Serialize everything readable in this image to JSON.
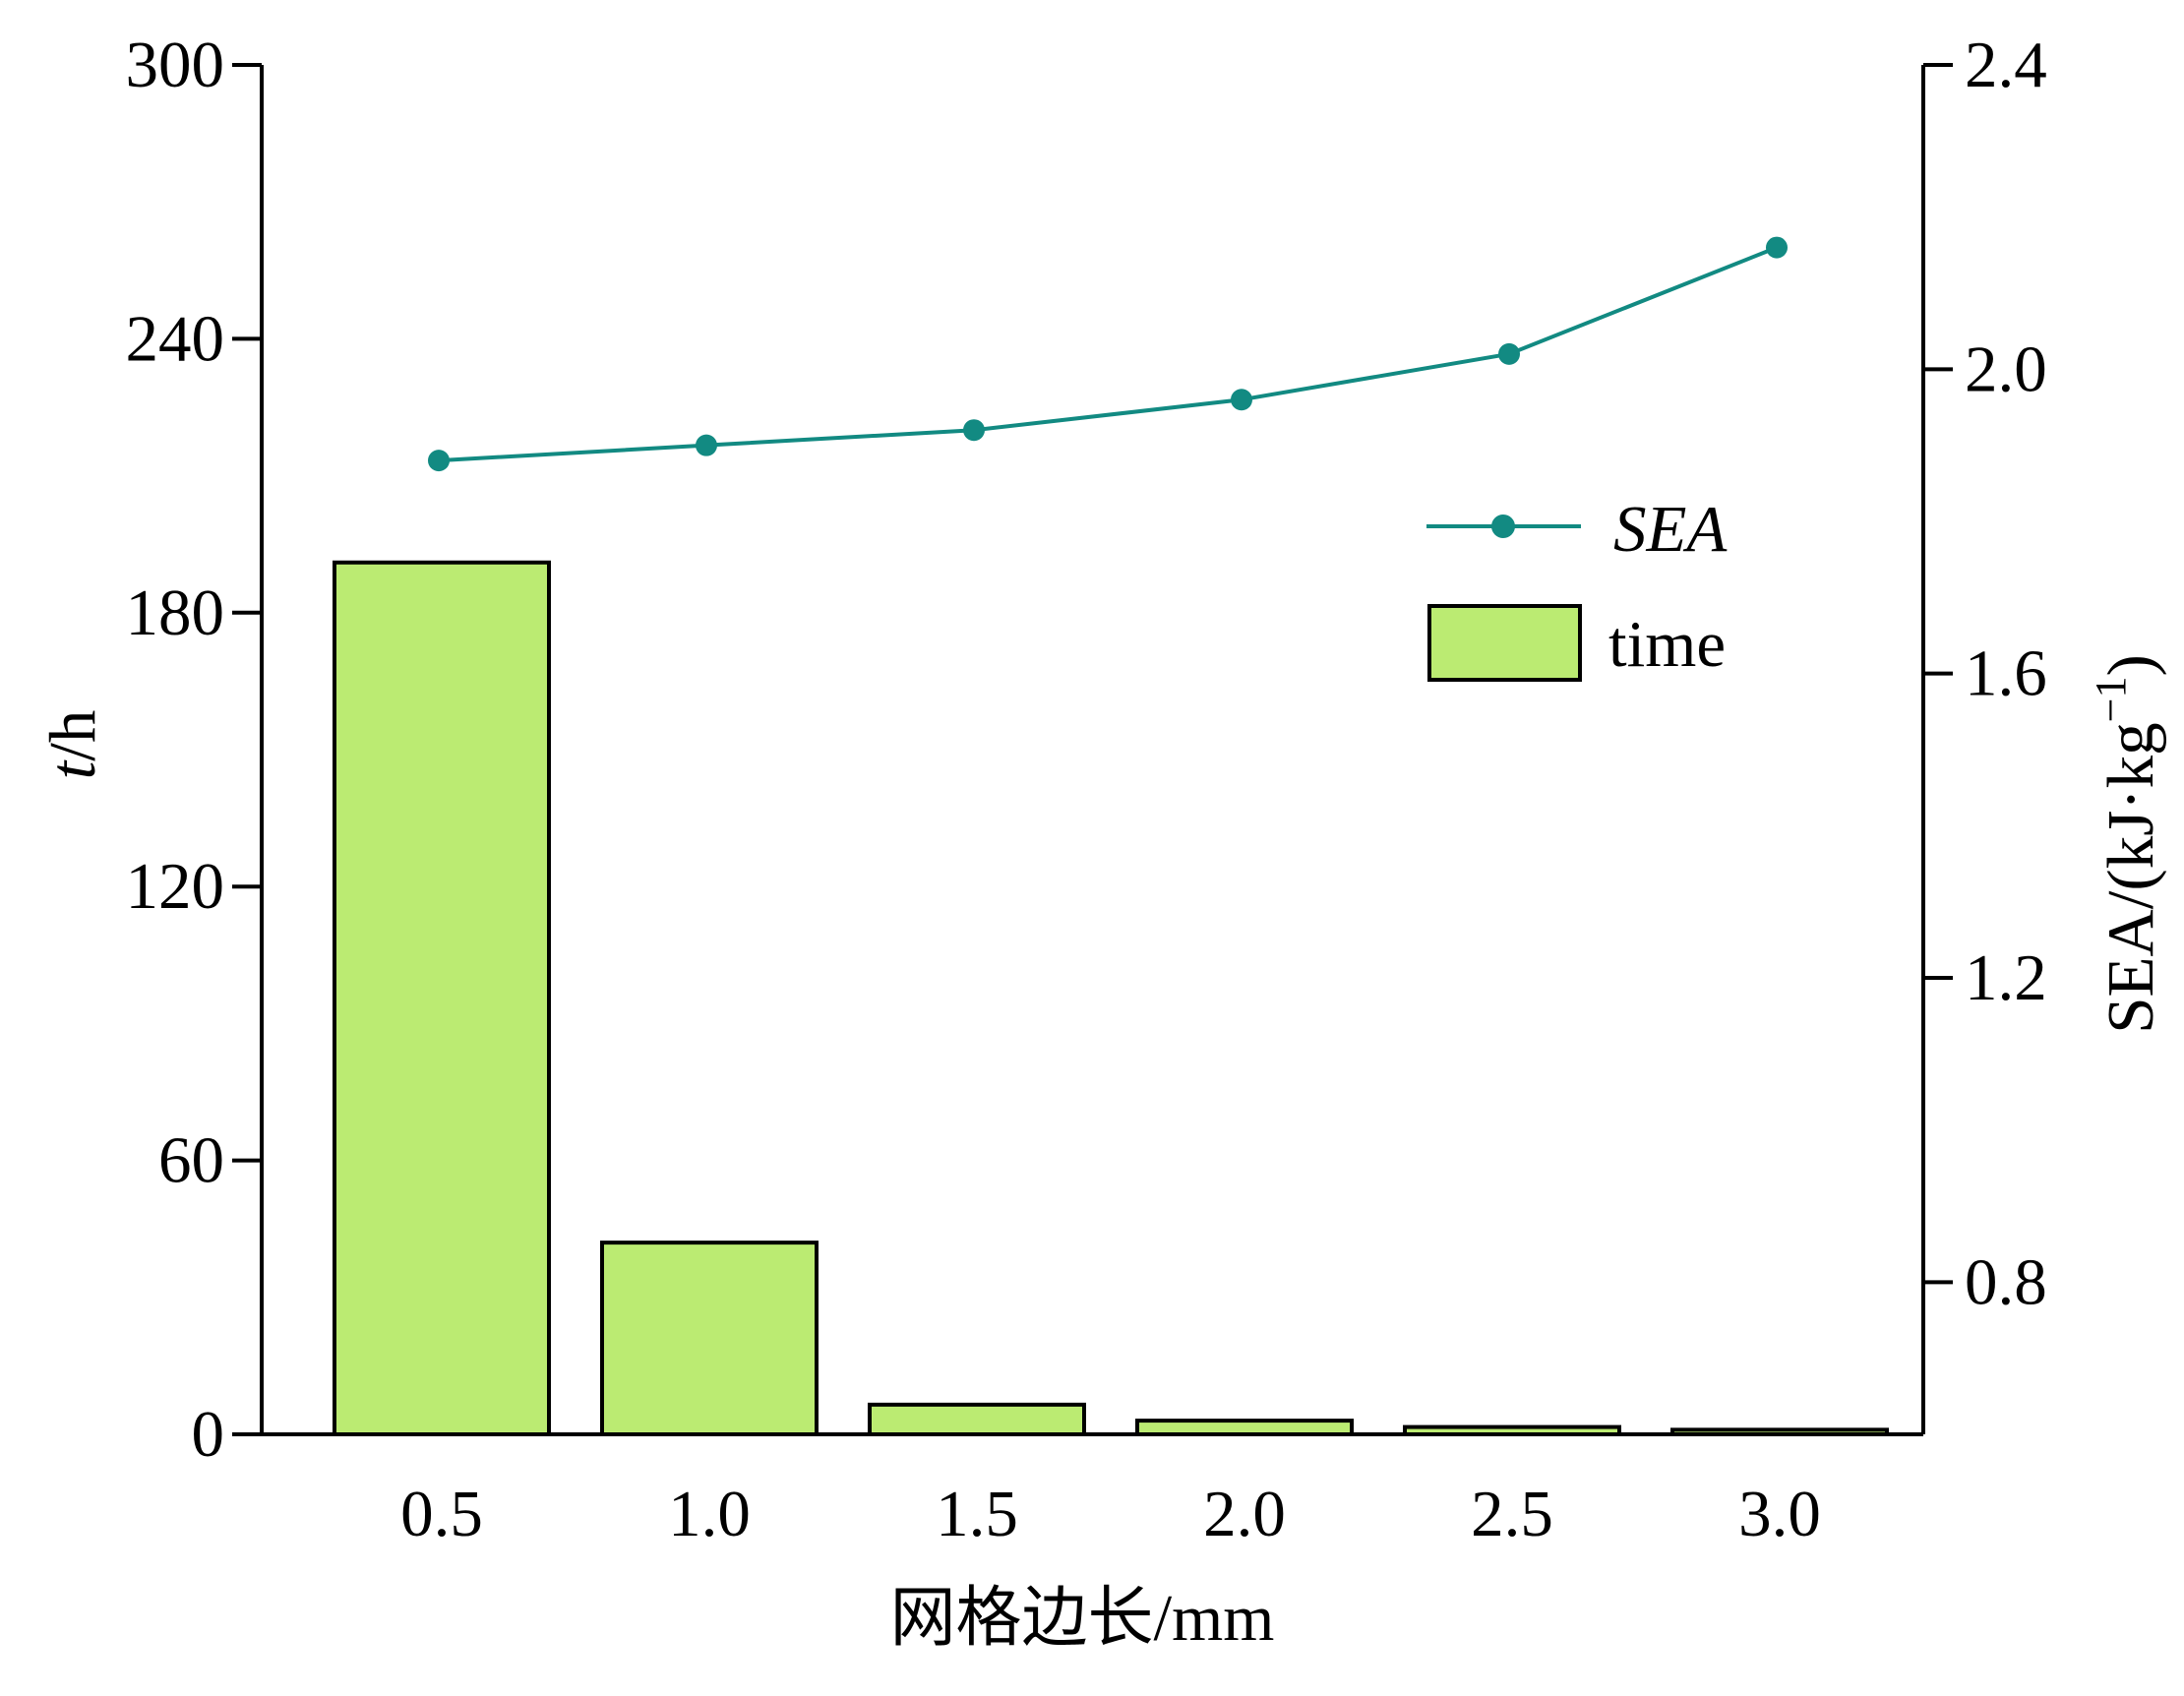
{
  "chart_data": {
    "type": "bar",
    "categories": [
      "0.5",
      "1.0",
      "1.5",
      "2.0",
      "2.5",
      "3.0"
    ],
    "xlabel": "网格边长/mm",
    "series": [
      {
        "name": "time",
        "type": "bar",
        "axis": "left",
        "values": [
          191,
          42,
          6.5,
          3,
          1.6,
          1
        ],
        "color": "#bbeb72"
      },
      {
        "name": "SEA",
        "type": "line",
        "axis": "right",
        "values": [
          1.88,
          1.9,
          1.92,
          1.96,
          2.02,
          2.16
        ],
        "color": "#128a82"
      }
    ],
    "y_left": {
      "label_italic": "t",
      "label_rest": "/h",
      "ylim": [
        0,
        300
      ],
      "ticks": [
        0,
        60,
        120,
        180,
        240,
        300
      ],
      "tick_labels": [
        "0",
        "60",
        "120",
        "180",
        "240",
        "300"
      ]
    },
    "y_right": {
      "label_main": "SEA/(kJ·kg",
      "label_sup": "−1",
      "label_close": ")",
      "ylim": [
        0.6,
        2.4
      ],
      "ticks": [
        0.8,
        1.2,
        1.6,
        2.0,
        2.4
      ],
      "tick_labels": [
        "0.8",
        "1.2",
        "1.6",
        "2.0",
        "2.4"
      ]
    },
    "legend": {
      "position": "upper-right",
      "entries": [
        "SEA",
        "time"
      ]
    },
    "grid": false
  }
}
